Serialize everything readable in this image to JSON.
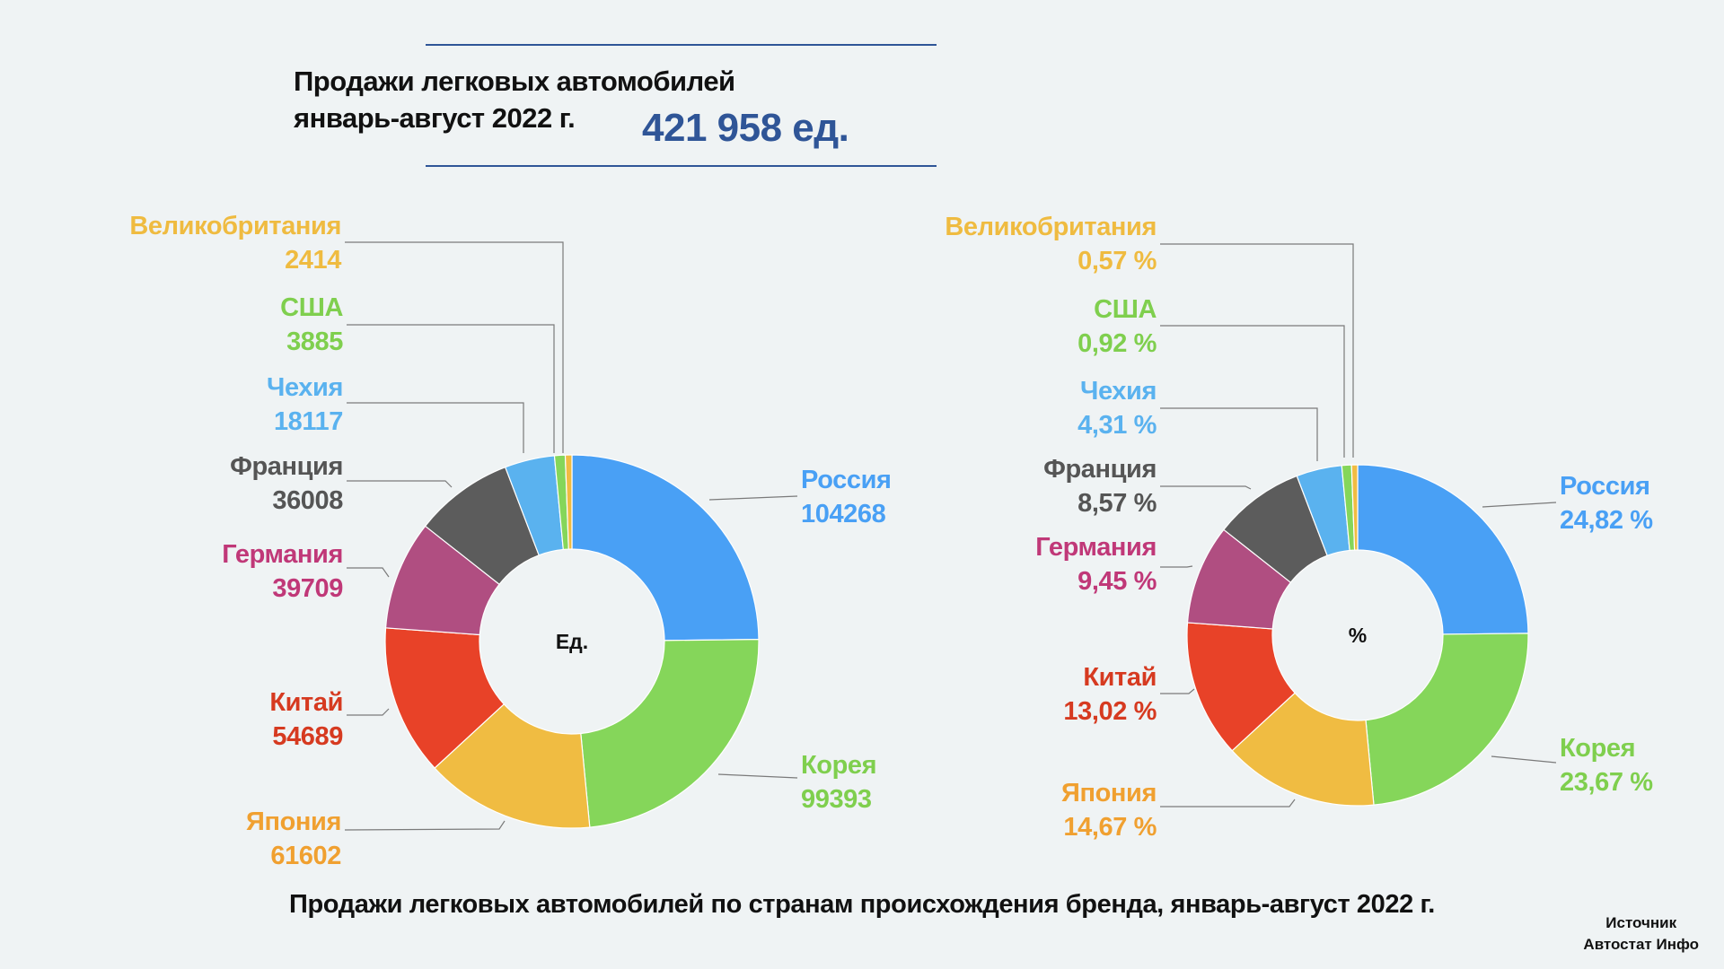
{
  "header": {
    "title_line1": "Продажи легковых автомобилей",
    "title_line2": "январь-август 2022 г.",
    "total": "421 958 ед."
  },
  "chart_data": [
    {
      "type": "pie",
      "variant": "donut",
      "center_label": "Ед.",
      "categories": [
        "Россия",
        "Корея",
        "Япония",
        "Китай",
        "Германия",
        "Франция",
        "Чехия",
        "США",
        "Великобритания"
      ],
      "values": [
        104268,
        99393,
        61602,
        54689,
        39709,
        36008,
        18117,
        3885,
        2414
      ],
      "value_labels": [
        "104268",
        "99393",
        "61602",
        "54689",
        "39709",
        "36008",
        "18117",
        "3885",
        "2414"
      ],
      "colors": [
        "#49a0f5",
        "#85d65a",
        "#f0bc42",
        "#e84228",
        "#b04e81",
        "#5c5c5c",
        "#5ab2ef",
        "#85d65a",
        "#f0bc42"
      ],
      "label_colors": [
        "#49a0f5",
        "#7fcf4e",
        "#f0a030",
        "#d63a20",
        "#c03878",
        "#555555",
        "#5ab2ef",
        "#7fcf4e",
        "#efbb40"
      ]
    },
    {
      "type": "pie",
      "variant": "donut",
      "center_label": "%",
      "categories": [
        "Россия",
        "Корея",
        "Япония",
        "Китай",
        "Германия",
        "Франция",
        "Чехия",
        "США",
        "Великобритания"
      ],
      "values": [
        24.82,
        23.67,
        14.67,
        13.02,
        9.45,
        8.57,
        4.31,
        0.92,
        0.57
      ],
      "value_labels": [
        "24,82 %",
        "23,67 %",
        "14,67 %",
        "13,02 %",
        "9,45 %",
        "8,57 %",
        "4,31 %",
        "0,92 %",
        "0,57 %"
      ],
      "colors": [
        "#49a0f5",
        "#85d65a",
        "#f0bc42",
        "#e84228",
        "#b04e81",
        "#5c5c5c",
        "#5ab2ef",
        "#85d65a",
        "#f0bc42"
      ],
      "label_colors": [
        "#49a0f5",
        "#7fcf4e",
        "#f0a030",
        "#d63a20",
        "#c03878",
        "#555555",
        "#5ab2ef",
        "#7fcf4e",
        "#efbb40"
      ]
    }
  ],
  "footer": {
    "title": "Продажи легковых автомобилей по странам происхождения бренда, январь-август 2022 г.",
    "source_line1": "Источник",
    "source_line2": "Автостат Инфо"
  }
}
